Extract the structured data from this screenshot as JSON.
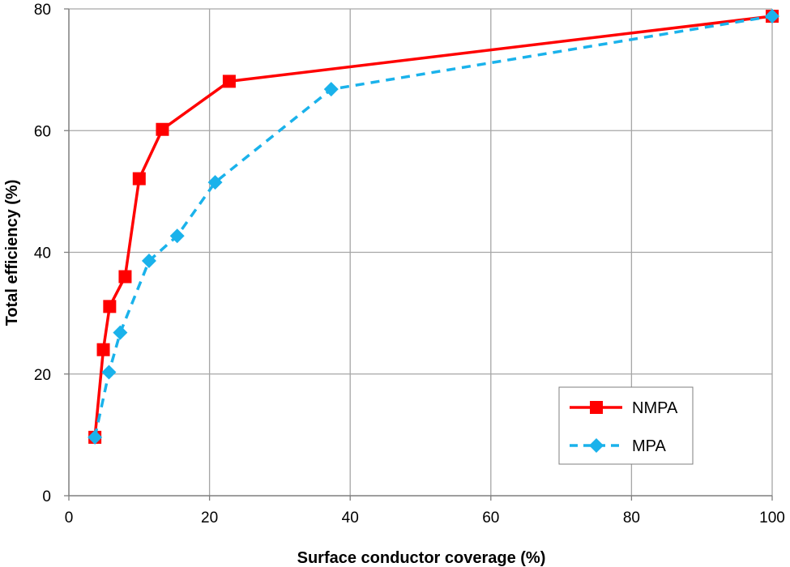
{
  "chart_data": {
    "type": "line",
    "xlabel": "Surface conductor coverage (%)",
    "ylabel": "Total efficiency (%)",
    "xlim": [
      0,
      100
    ],
    "ylim": [
      0,
      80
    ],
    "x_ticks": [
      0,
      20,
      40,
      60,
      80,
      100
    ],
    "y_ticks": [
      0,
      20,
      40,
      60,
      80
    ],
    "grid": true,
    "legend_position": "bottom-right",
    "series": [
      {
        "name": "NMPA",
        "color": "#ff0000",
        "line_style": "solid",
        "marker": "square",
        "x": [
          3.7,
          4.9,
          5.8,
          8.0,
          10.0,
          13.3,
          22.8,
          100
        ],
        "y": [
          9.6,
          24.0,
          31.1,
          36.0,
          52.1,
          60.2,
          68.1,
          78.8
        ]
      },
      {
        "name": "MPA",
        "color": "#1ab2eb",
        "line_style": "dashed",
        "marker": "diamond",
        "x": [
          3.7,
          5.7,
          7.3,
          11.4,
          15.4,
          20.8,
          37.3,
          100
        ],
        "y": [
          9.6,
          20.3,
          26.8,
          38.6,
          42.7,
          51.5,
          66.8,
          78.8
        ]
      }
    ]
  }
}
